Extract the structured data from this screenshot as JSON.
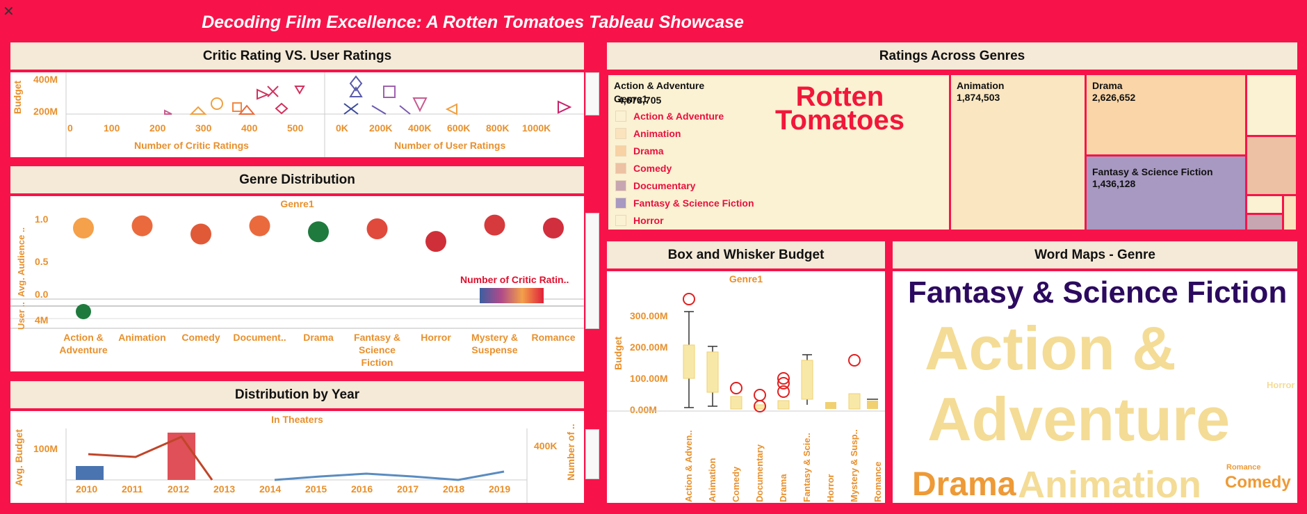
{
  "dashboard": {
    "title": "Decoding Film Excellence: A Rotten Tomatoes Tableau Showcase",
    "close_glyph": "✕"
  },
  "critic_panel": {
    "title": "Critic Rating VS. User Ratings",
    "y_axis_label": "Budget",
    "y_ticks": [
      "400M",
      "200M"
    ],
    "left_x_ticks": [
      "0",
      "100",
      "200",
      "300",
      "400",
      "500"
    ],
    "left_x_label": "Number of Critic Ratings",
    "right_x_ticks": [
      "0K",
      "200K",
      "400K",
      "600K",
      "800K",
      "1000K"
    ],
    "right_x_label": "Number of User Ratings"
  },
  "genre_dist": {
    "title": "Genre Distribution",
    "header": "Genre1",
    "y_label_top": "Avg. Audience ..",
    "y_label_bottom": "User ..",
    "y_ticks": [
      "1.0",
      "0.5",
      "0.0"
    ],
    "y_ticks_bottom": [
      "4M"
    ],
    "legend_title": "Number of Critic Ratin..",
    "categories": [
      {
        "label": "Action &\nAdventure",
        "value": 0.87,
        "color": "#f5a04a"
      },
      {
        "label": "Animation",
        "value": 0.9,
        "color": "#ea6a3d"
      },
      {
        "label": "Comedy",
        "value": 0.79,
        "color": "#e05a38"
      },
      {
        "label": "Document..",
        "value": 0.9,
        "color": "#ea6a3d"
      },
      {
        "label": "Drama",
        "value": 0.82,
        "color": "#1f7a3e"
      },
      {
        "label": "Fantasy &\nScience\nFiction",
        "value": 0.86,
        "color": "#e04a3c"
      },
      {
        "label": "Horror",
        "value": 0.69,
        "color": "#cf2f38"
      },
      {
        "label": "Mystery &\nSuspense",
        "value": 0.91,
        "color": "#d63a3c"
      },
      {
        "label": "Romance",
        "value": 0.87,
        "color": "#d12f3e"
      }
    ]
  },
  "year_dist": {
    "title": "Distribution by Year",
    "header": "In Theaters",
    "y_left_label": "Avg. Budget",
    "y_left_ticks": [
      "100M"
    ],
    "y_right_label": "Number of ..",
    "y_right_ticks": [
      "400K"
    ],
    "years": [
      "2010",
      "2011",
      "2012",
      "2013",
      "2014",
      "2015",
      "2016",
      "2017",
      "2018",
      "2019"
    ]
  },
  "genres_treemap": {
    "title": "Ratings Across Genres",
    "cells": [
      {
        "name": "Action & Adventure",
        "value": "4,673,705",
        "color": "#fbf1d3"
      },
      {
        "name": "Animation",
        "value": "1,874,503",
        "color": "#fae7c2"
      },
      {
        "name": "Drama",
        "value": "2,626,652",
        "color": "#f9d5a8"
      },
      {
        "name": "Fantasy & Science Fiction",
        "value": "1,436,128",
        "color": "#a799c2"
      }
    ],
    "legend_title": "Genre1",
    "legend": [
      {
        "label": "Action & Adventure",
        "color": "#fbf1d3"
      },
      {
        "label": "Animation",
        "color": "#fae3bd"
      },
      {
        "label": "Drama",
        "color": "#f8d2a4"
      },
      {
        "label": "Comedy",
        "color": "#edc1a3"
      },
      {
        "label": "Documentary",
        "color": "#c7a6b1"
      },
      {
        "label": "Fantasy & Science Fiction",
        "color": "#a799c2"
      },
      {
        "label": "Horror",
        "color": "#fbf1d3"
      }
    ],
    "logo_line1": "Rotten",
    "logo_line2": "Tomatoes"
  },
  "boxplot": {
    "title": "Box and Whisker Budget",
    "header": "Genre1",
    "y_label": "Budget",
    "y_ticks": [
      "300.00M",
      "200.00M",
      "100.00M",
      "0.00M"
    ],
    "categories": [
      "Action & Adven..",
      "Animation",
      "Comedy",
      "Documentary",
      "Drama",
      "Fantasy & Scie..",
      "Horror",
      "Mystery & Susp..",
      "Romance"
    ]
  },
  "wordmap": {
    "title": "Word Maps - Genre",
    "words": [
      {
        "text": "Fantasy & Science Fiction",
        "color": "#2c0a5f"
      },
      {
        "text": "Action &",
        "color": "#f4dc96"
      },
      {
        "text": "Adventure",
        "color": "#f4dc96"
      },
      {
        "text": "Horror",
        "color": "#f4dc96"
      },
      {
        "text": "Drama",
        "color": "#ee9a36"
      },
      {
        "text": "Animation",
        "color": "#f4dc96"
      },
      {
        "text": "Romance",
        "color": "#ee9a36"
      },
      {
        "text": "Comedy",
        "color": "#ee9a36"
      }
    ]
  }
}
